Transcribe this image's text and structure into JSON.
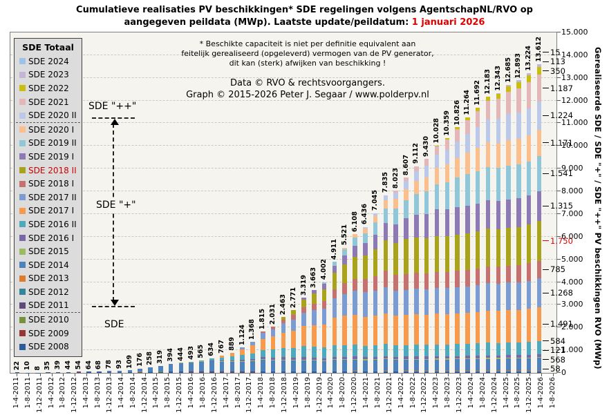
{
  "title": {
    "line1": "Cumulatieve realisaties PV beschikkingen*  SDE regelingen  volgens AgentschapNL/RVO  op",
    "line2_prefix": "aangegeven peildata (MWp).  Laatste update/peildatum: ",
    "line2_date": "1 januari  2026"
  },
  "annotations": {
    "disclaimer_line1": "* Beschikte capaciteit is niet per definitie equivalent aan",
    "disclaimer_line2": "feitelijk gerealiseerd (opgeleverd) vermogen van de PV generator,",
    "disclaimer_line3": "dit kan (sterk) afwijken van beschikking !",
    "credit_line1": "Data © RVO  & rechtsvoorgangers.",
    "credit_line2": "Graph  ©  2015-2026  Peter J. Segaar / www.polderpv.nl",
    "group_label_top": "SDE \"++\"",
    "group_label_middle": "SDE \"+\"",
    "group_label_bottom": "SDE"
  },
  "legend": {
    "header": "SDE Totaal",
    "separator_after": [
      "SDE 2020 II",
      "SDE 2011"
    ]
  },
  "y_axis": {
    "title": "Gerealiseerde SDE / SDE \"+\" / SDE \"++\" PV beschikkingen RVO (MWp)",
    "ticks": [
      "15.000",
      "14.000",
      "13.000",
      "12.000",
      "11.000",
      "10.000",
      "9.000",
      "8.000",
      "7.000",
      "6.000",
      "5.000",
      "4.000",
      "3.000",
      "2.000",
      "1.000",
      "0"
    ],
    "max_mwp": 15000
  },
  "x_axis": {
    "ticks": [
      "1-4-2011",
      "1-8-2011",
      "1-12-2011",
      "1-4-2012",
      "1-8-2012",
      "1-12-2012",
      "1-4-2013",
      "1-8-2013",
      "1-12-2013",
      "1-4-2014",
      "1-8-2014",
      "1-12-2014",
      "1-4-2015",
      "1-8-2015",
      "1-12-2015",
      "1-4-2016",
      "1-8-2016",
      "1-12-2016",
      "1-4-2017",
      "1-8-2017",
      "1-12-2017",
      "1-4-2018",
      "1-8-2018",
      "1-12-2018",
      "1-4-2019",
      "1-8-2019",
      "1-12-2019",
      "1-4-2020",
      "1-8-2020",
      "1-12-2020",
      "1-4-2021",
      "1-8-2021",
      "1-12-2021",
      "1-4-2022",
      "1-8-2022",
      "1-12-2022",
      "1-4-2023",
      "1-8-2023",
      "1-12-2023",
      "1-4-2024",
      "1-8-2024",
      "1-12-2024",
      "1-4-2025",
      "1-8-2025",
      "1-12-2025",
      "1-4-2026",
      "1-8-2026"
    ]
  },
  "chart_data": {
    "type": "bar",
    "subtype": "stacked",
    "unit": "MWp",
    "title": "Cumulatieve realisaties PV beschikkingen SDE regelingen volgens AgentschapNL/RVO op aangegeven peildata (MWp)",
    "ylabel": "Gerealiseerde SDE / SDE \"+\" / SDE \"++\" PV beschikkingen RVO (MWp)",
    "ylim": [
      0,
      15000
    ],
    "grid": "horizontal-dashed",
    "legend_position": "upper-left",
    "bar_total_labels": [
      "22",
      "10",
      "8",
      "35",
      "39",
      "44",
      "54",
      "64",
      "68",
      "78",
      "93",
      "109",
      "176",
      "258",
      "319",
      "394",
      "444",
      "493",
      "565",
      "634",
      "767",
      "889",
      "1.124",
      "1.368",
      "1.815",
      "2.031",
      "2.463",
      "2.771",
      "3.319",
      "3.663",
      "4.002",
      "4.911",
      "5.521",
      "6.108",
      "6.436",
      "7.045",
      "7.835",
      "8.023",
      "8.607",
      "9.112",
      "9.430",
      "10.028",
      "10.359",
      "10.826",
      "11.264",
      "11.692",
      "12.183",
      "12.343",
      "12.685",
      "12.893",
      "13.224",
      "13.612"
    ],
    "series_note": "series listed bottom-to-top of stack; final_value = realised MWp at peildatum 1-1-2026 (callout labels on last bar); ramp = estimated [startBar,endBar] growth window used only to approximate intermediate stack splits",
    "series": [
      {
        "name": "SDE 2008",
        "color": "#2c5d9a",
        "final_value": 58,
        "ramp": [
          -8,
          6
        ]
      },
      {
        "name": "SDE 2009",
        "color": "#953735",
        "final_value": 5,
        "ramp": [
          -4,
          6
        ]
      },
      {
        "name": "SDE 2010",
        "color": "#76923c",
        "final_value": 3,
        "ramp": [
          0,
          8
        ]
      },
      {
        "name": "SDE 2011",
        "color": "#5f4a7b",
        "final_value": 1,
        "ramp": [
          2,
          10
        ]
      },
      {
        "name": "SDE 2012",
        "color": "#31859c",
        "final_value": 2,
        "ramp": [
          3,
          12
        ]
      },
      {
        "name": "SDE 2013",
        "color": "#dd7b2f",
        "final_value": 20,
        "ramp": [
          5,
          14
        ]
      },
      {
        "name": "SDE 2014",
        "color": "#4f81bd",
        "final_value": 568,
        "ramp": [
          8,
          18
        ]
      },
      {
        "name": "SDE 2015",
        "color": "#9cba5f",
        "final_value": 40,
        "ramp": [
          13,
          22
        ]
      },
      {
        "name": "SDE 2016 I",
        "color": "#7a68a6",
        "final_value": 121,
        "ramp": [
          16,
          26
        ]
      },
      {
        "name": "SDE 2016 II",
        "color": "#4fa9bd",
        "final_value": 584,
        "ramp": [
          17,
          28
        ]
      },
      {
        "name": "SDE 2017 I",
        "color": "#f79a4d",
        "final_value": 1491,
        "ramp": [
          19,
          32
        ]
      },
      {
        "name": "SDE 2017 II",
        "color": "#7b9bd3",
        "final_value": 1268,
        "ramp": [
          21,
          34
        ]
      },
      {
        "name": "SDE 2018 I",
        "color": "#c4716f",
        "final_value": 785,
        "ramp": [
          23,
          36
        ]
      },
      {
        "name": "SDE 2018 II",
        "color": "#a8a31a",
        "final_value": 1750,
        "ramp": [
          25,
          38
        ],
        "red_label": true
      },
      {
        "name": "SDE 2019 I",
        "color": "#8d7ab5",
        "final_value": 1315,
        "ramp": [
          27,
          41
        ]
      },
      {
        "name": "SDE 2019 II",
        "color": "#8fc6d8",
        "final_value": 1541,
        "ramp": [
          29,
          44
        ]
      },
      {
        "name": "SDE 2020 I",
        "color": "#fbbf8e",
        "final_value": 1171,
        "ramp": [
          31,
          46
        ]
      },
      {
        "name": "SDE 2020 II",
        "color": "#bcc8e8",
        "final_value": 1224,
        "ramp": [
          33,
          48
        ]
      },
      {
        "name": "SDE 2021",
        "color": "#e3b7b7",
        "final_value": 1187,
        "ramp": [
          36,
          50
        ]
      },
      {
        "name": "SDE 2022",
        "color": "#c9bd0e",
        "final_value": 350,
        "ramp": [
          40,
          51
        ]
      },
      {
        "name": "SDE 2023",
        "color": "#c2b5d8",
        "final_value": 113,
        "ramp": [
          45,
          51
        ]
      },
      {
        "name": "SDE 2024",
        "color": "#9dc3e6",
        "final_value": 15,
        "ramp": [
          48,
          51
        ]
      }
    ],
    "final_bar_callouts": [
      {
        "label": "15",
        "series": "SDE 2024"
      },
      {
        "label": "113",
        "series": "SDE 2023"
      },
      {
        "label": "350",
        "series": "SDE 2022"
      },
      {
        "label": "1.187",
        "series": "SDE 2021"
      },
      {
        "label": "1.224",
        "series": "SDE 2020 II"
      },
      {
        "label": "1.171",
        "series": "SDE 2020 I"
      },
      {
        "label": "1.541",
        "series": "SDE 2019 II"
      },
      {
        "label": "1.315",
        "series": "SDE 2019 I"
      },
      {
        "label": "1.750",
        "series": "SDE 2018 II",
        "highlight": true
      },
      {
        "label": "785",
        "series": "SDE 2018 I"
      },
      {
        "label": "1.268",
        "series": "SDE 2017 II"
      },
      {
        "label": "1.491",
        "series": "SDE 2017 I"
      },
      {
        "label": "584",
        "series": "SDE 2016 II"
      },
      {
        "label": "121",
        "series": "SDE 2016 I"
      },
      {
        "label": "568",
        "series": "SDE 2014"
      },
      {
        "label": "58",
        "series": "SDE 2008"
      }
    ]
  }
}
